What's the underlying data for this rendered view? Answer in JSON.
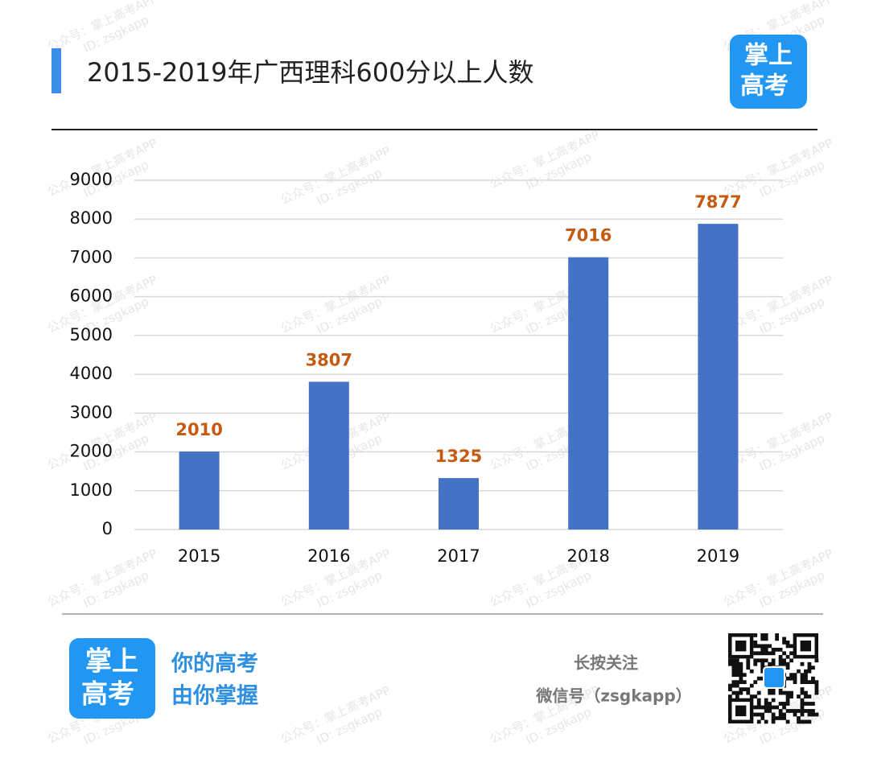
{
  "header": {
    "title": "2015-2019年广西理科600分以上人数"
  },
  "logo": {
    "lines": [
      "掌上",
      "高考"
    ]
  },
  "watermark": {
    "lines": [
      "公众号：掌上高考APP",
      "ID: zsgkapp"
    ]
  },
  "chart_data": {
    "type": "bar",
    "categories": [
      "2015",
      "2016",
      "2017",
      "2018",
      "2019"
    ],
    "values": [
      2010,
      3807,
      1325,
      7016,
      7877
    ],
    "color": "#4472c4",
    "value_label_color": "#c55a11",
    "ylim": [
      0,
      9000
    ],
    "yticks": [
      0,
      1000,
      2000,
      3000,
      4000,
      5000,
      6000,
      7000,
      8000,
      9000
    ],
    "grid": true
  },
  "footer": {
    "slogan": [
      "你的高考",
      "由你掌握"
    ],
    "follow": "长按关注",
    "wechat": "微信号（zsgkapp）"
  }
}
